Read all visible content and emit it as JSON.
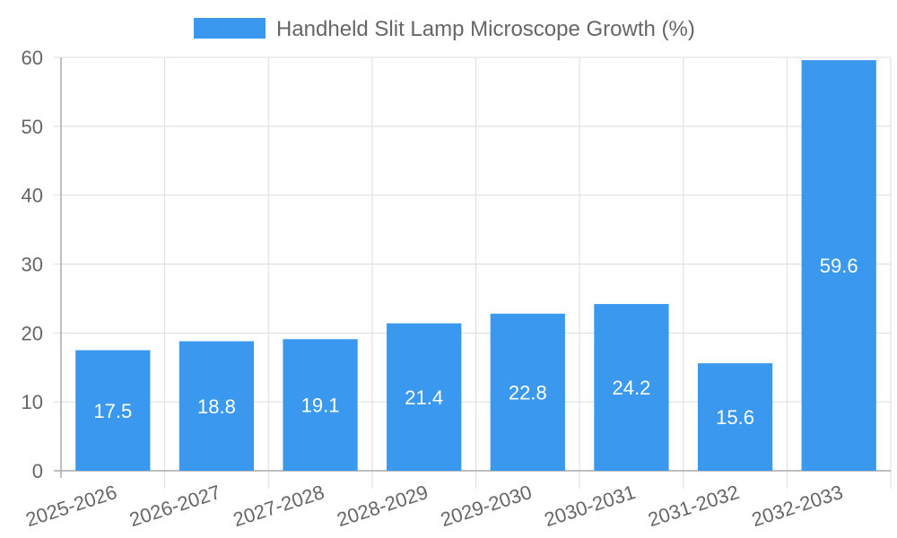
{
  "chart_data": {
    "type": "bar",
    "categories": [
      "2025-2026",
      "2026-2027",
      "2027-2028",
      "2028-2029",
      "2029-2030",
      "2030-2031",
      "2031-2032",
      "2032-2033"
    ],
    "series": [
      {
        "name": "Handheld Slit Lamp Microscope Growth (%)",
        "values": [
          17.5,
          18.8,
          19.1,
          21.4,
          22.8,
          24.2,
          15.6,
          59.6
        ],
        "color": "#3a99ee"
      }
    ],
    "ylim": [
      0,
      60
    ],
    "yticks": [
      0,
      10,
      20,
      30,
      40,
      50,
      60
    ],
    "grid": true,
    "legend_position": "top-center",
    "data_labels": true
  }
}
